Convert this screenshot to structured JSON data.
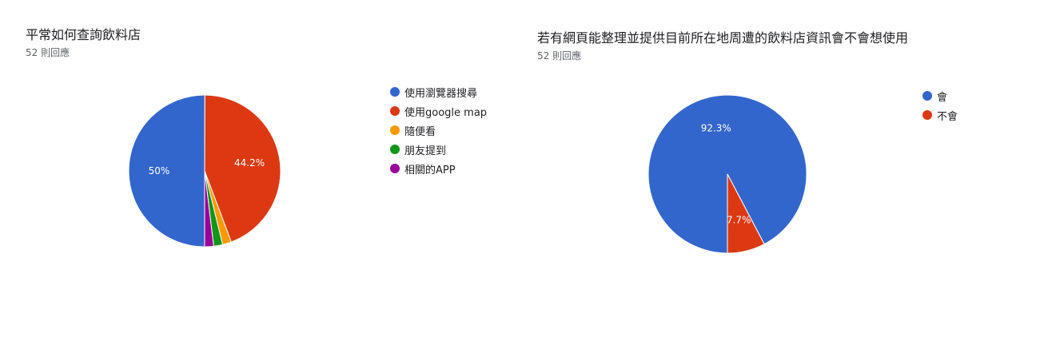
{
  "chart_data": [
    {
      "type": "pie",
      "title": "平常如何查詢飲料店",
      "subtitle": "52 則回應",
      "legend_position": "right",
      "categories": [
        "使用瀏覽器搜尋",
        "使用google map",
        "隨便看",
        "朋友提到",
        "相關的APP"
      ],
      "values": [
        50,
        44.2,
        1.9,
        1.9,
        1.9
      ],
      "data_labels": [
        "50%",
        "44.2%",
        "",
        "",
        ""
      ],
      "colors": [
        "#3366cc",
        "#dc3912",
        "#ff9900",
        "#109618",
        "#990099"
      ]
    },
    {
      "type": "pie",
      "title": "若有網頁能整理並提供目前所在地周遭的飲料店資訊會不會想使用",
      "subtitle": "52 則回應",
      "legend_position": "right",
      "categories": [
        "會",
        "不會"
      ],
      "values": [
        92.3,
        7.7
      ],
      "data_labels": [
        "92.3%",
        "7.7%"
      ],
      "colors": [
        "#3366cc",
        "#dc3912"
      ]
    }
  ]
}
